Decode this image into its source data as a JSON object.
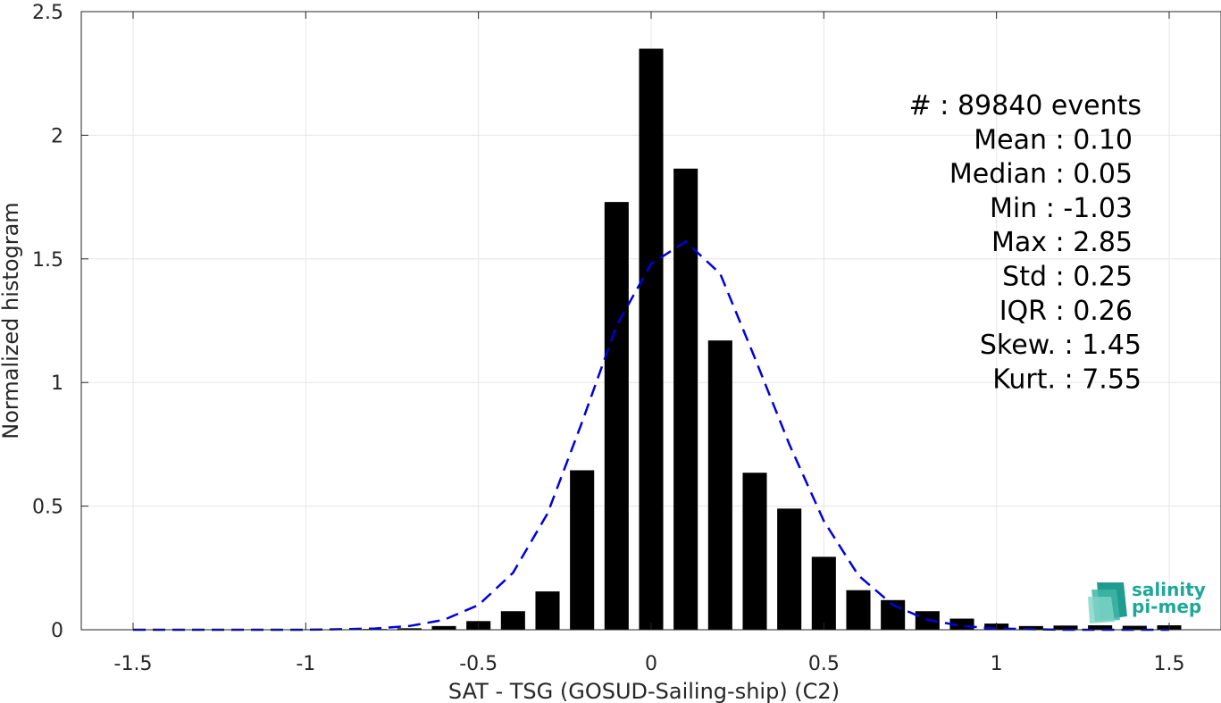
{
  "chart_data": {
    "type": "bar",
    "xlabel": "SAT - TSG (GOSUD-Sailing-ship) (C2)",
    "ylabel": "Normalized histogram",
    "xlim": [
      -1.65,
      1.65
    ],
    "ylim": [
      0,
      2.5
    ],
    "grid": true,
    "xticks": [
      -1.5,
      -1,
      -0.5,
      0,
      0.5,
      1,
      1.5
    ],
    "xtick_labels": [
      "-1.5",
      "-1",
      "-0.5",
      "0",
      "0.5",
      "1",
      "1.5"
    ],
    "yticks": [
      0,
      0.5,
      1,
      1.5,
      2,
      2.5
    ],
    "ytick_labels": [
      "0",
      "0.5",
      "1",
      "1.5",
      "2",
      "2.5"
    ],
    "bar_width": 0.07,
    "bars": {
      "x": [
        -1.0,
        -0.9,
        -0.8,
        -0.7,
        -0.6,
        -0.5,
        -0.4,
        -0.3,
        -0.2,
        -0.1,
        0.0,
        0.1,
        0.2,
        0.3,
        0.4,
        0.5,
        0.6,
        0.7,
        0.8,
        0.9,
        1.0,
        1.1,
        1.2,
        1.3,
        1.4,
        1.5
      ],
      "values": [
        0.002,
        0.002,
        0.003,
        0.006,
        0.015,
        0.035,
        0.075,
        0.155,
        0.645,
        1.73,
        2.35,
        1.865,
        1.17,
        0.635,
        0.49,
        0.295,
        0.16,
        0.12,
        0.075,
        0.045,
        0.025,
        0.015,
        0.017,
        0.018,
        0.016,
        0.018
      ],
      "color": "#000000"
    },
    "fit_curve": {
      "style": "dashed",
      "color": "#0000dd",
      "x": [
        -1.5,
        -1.4,
        -1.3,
        -1.2,
        -1.1,
        -1.0,
        -0.9,
        -0.8,
        -0.7,
        -0.6,
        -0.5,
        -0.4,
        -0.3,
        -0.2,
        -0.1,
        0.0,
        0.1,
        0.2,
        0.3,
        0.4,
        0.5,
        0.6,
        0.7,
        0.8,
        0.9,
        1.0,
        1.1,
        1.2,
        1.3,
        1.4,
        1.5
      ],
      "y": [
        0.0,
        0.0,
        0.0,
        0.0,
        0.0,
        0.0,
        0.002,
        0.005,
        0.015,
        0.04,
        0.1,
        0.23,
        0.47,
        0.84,
        1.23,
        1.48,
        1.57,
        1.44,
        1.1,
        0.75,
        0.44,
        0.22,
        0.1,
        0.04,
        0.015,
        0.005,
        0.002,
        0.0,
        0.0,
        0.0,
        0.0
      ]
    },
    "stats": [
      {
        "label": "#  : 89840 events"
      },
      {
        "label": "Mean : 0.10"
      },
      {
        "label": "Median : 0.05"
      },
      {
        "label": "Min : -1.03"
      },
      {
        "label": "Max : 2.85"
      },
      {
        "label": "Std : 0.25"
      },
      {
        "label": "IQR : 0.26"
      },
      {
        "label": "Skew. : 1.45"
      },
      {
        "label": "Kurt. : 7.55"
      }
    ]
  },
  "logo": {
    "line1": "salinity",
    "line2": "pi-mep",
    "color": "#1fa89a"
  }
}
